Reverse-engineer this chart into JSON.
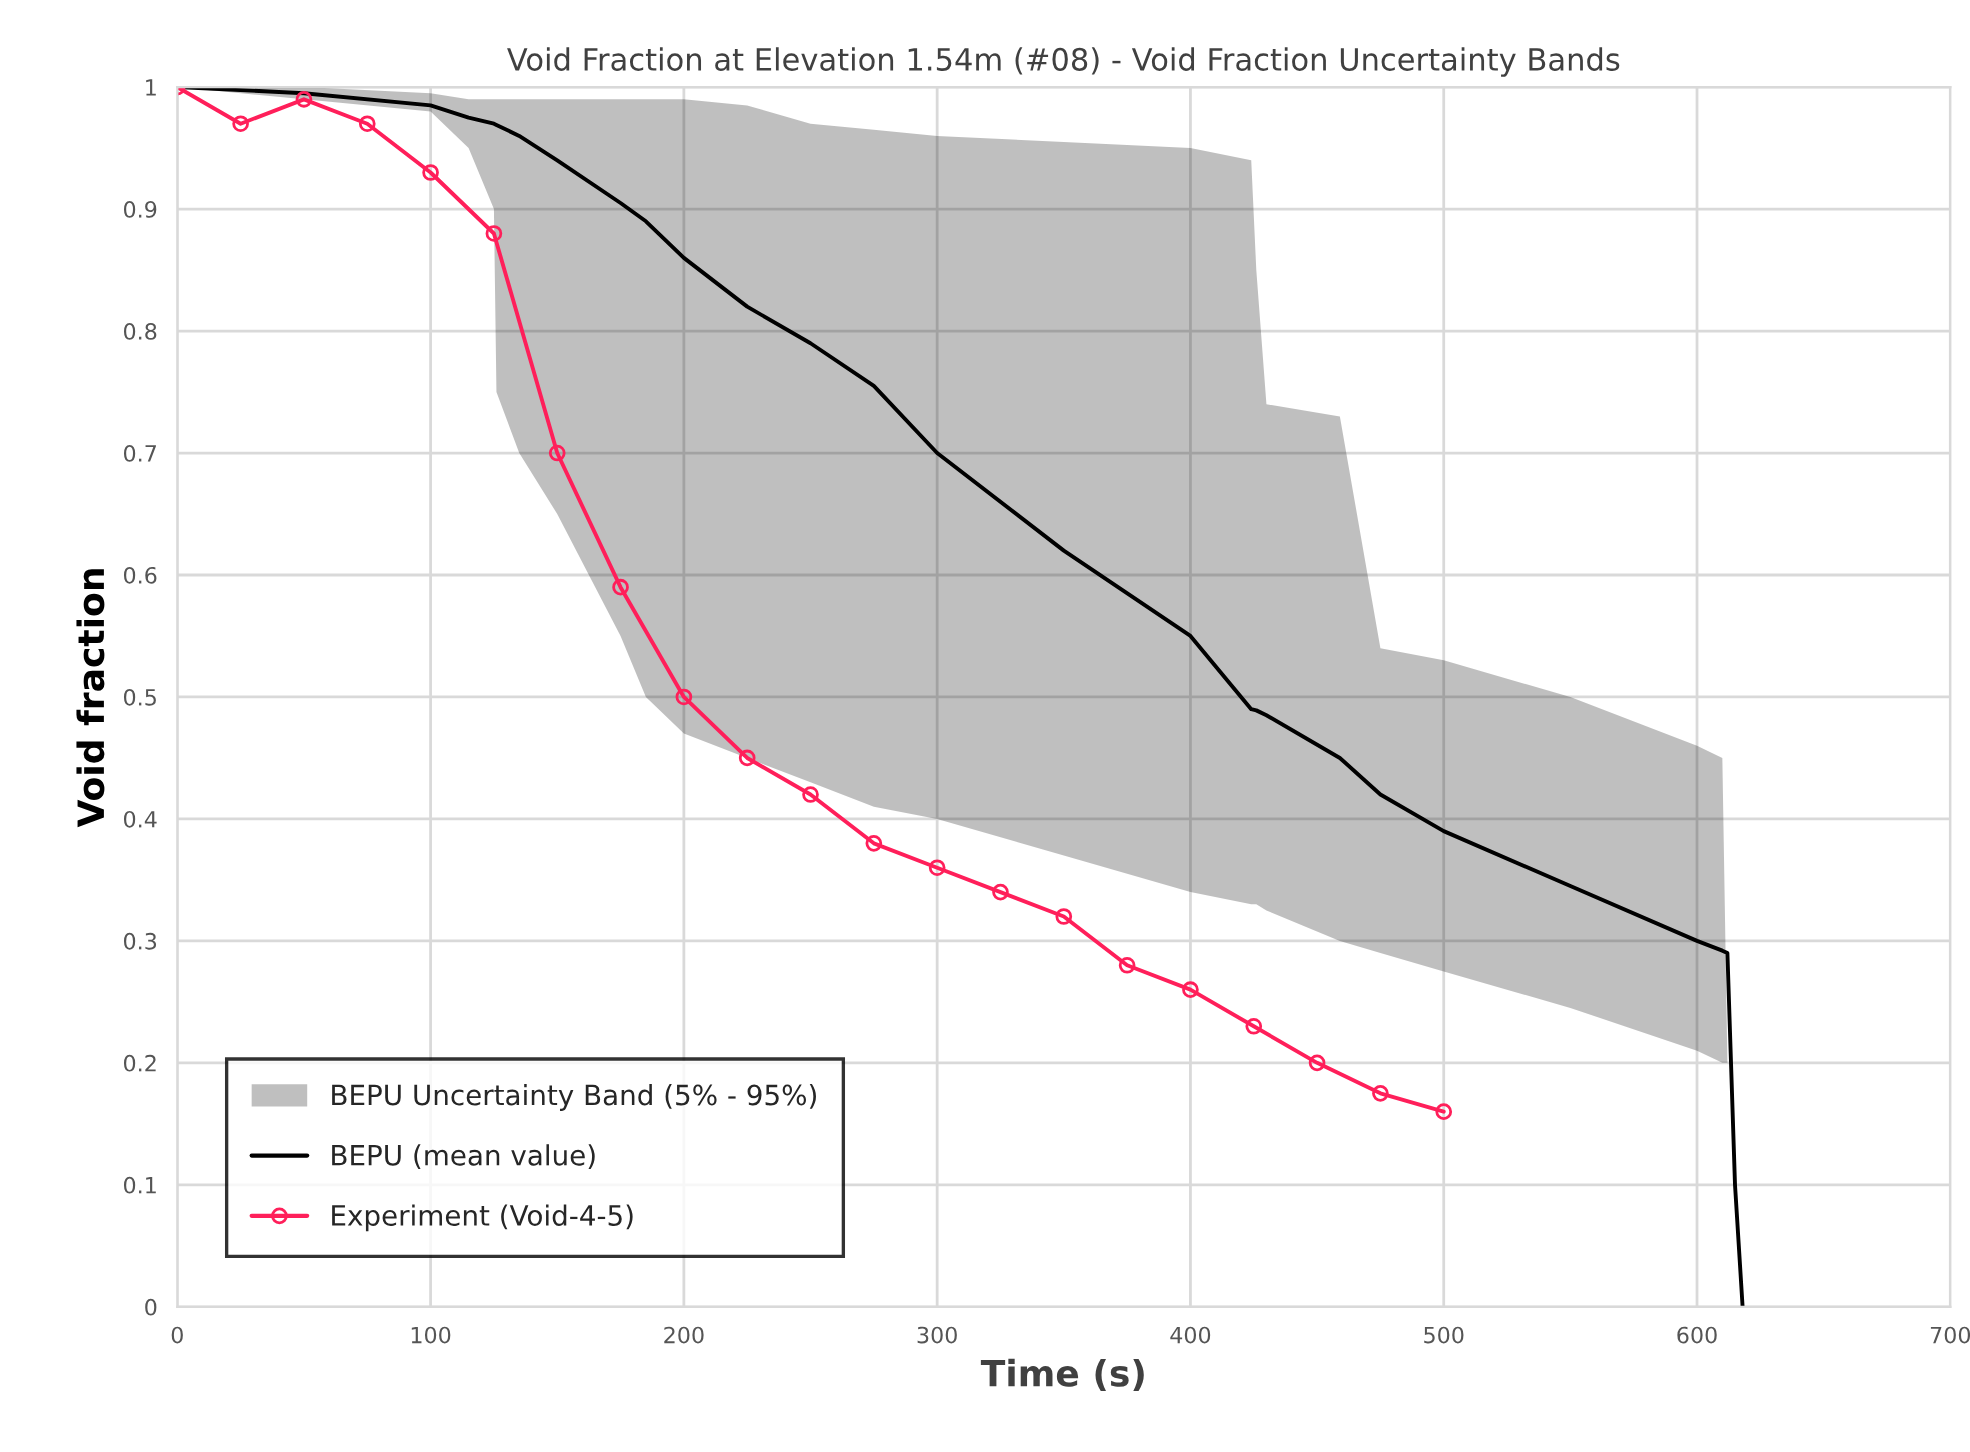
{
  "chart_data": {
    "type": "line",
    "title": "Void Fraction at Elevation 1.54m (#08) - Void Fraction Uncertainty Bands",
    "xlabel": "Time (s)",
    "ylabel": "Void fraction",
    "xlim": [
      0,
      700
    ],
    "xticks": [
      0,
      100,
      200,
      300,
      400,
      500,
      600,
      700
    ],
    "ylim": [
      0,
      1
    ],
    "yticks": [
      0,
      0.1,
      0.2,
      0.3,
      0.4,
      0.5,
      0.6,
      0.7,
      0.8,
      0.9,
      1
    ],
    "grid": true,
    "legend": "bottom left",
    "annotations": [
      "BEPU Uncertainty Band (5% - 95%)"
    ],
    "series": [
      {
        "name": "BEPU (mean value)",
        "color": "#000000",
        "marker": "none",
        "x": [
          0,
          50,
          100,
          115,
          125,
          126,
          135,
          150,
          175,
          185,
          200,
          225,
          250,
          275,
          300,
          350,
          400,
          424,
          426,
          430,
          459,
          475,
          500,
          550,
          600,
          610,
          612,
          615,
          618
        ],
        "values": [
          1,
          0.995,
          0.985,
          0.975,
          0.97,
          0.969,
          0.96,
          0.94,
          0.905,
          0.89,
          0.86,
          0.82,
          0.79,
          0.755,
          0.7,
          0.62,
          0.55,
          0.49,
          0.489,
          0.485,
          0.45,
          0.42,
          0.39,
          0.345,
          0.3,
          0.292,
          0.29,
          0.1,
          0
        ],
        "upper": [
          1,
          1,
          0.995,
          0.99,
          0.99,
          0.99,
          0.99,
          0.99,
          0.99,
          0.99,
          0.99,
          0.985,
          0.97,
          0.965,
          0.96,
          0.955,
          0.95,
          0.94,
          0.85,
          0.74,
          0.73,
          0.54,
          0.53,
          0.5,
          0.46,
          0.45,
          0.2,
          null,
          null
        ],
        "lower": [
          1,
          0.99,
          0.98,
          0.95,
          0.9,
          0.75,
          0.7,
          0.65,
          0.55,
          0.5,
          0.47,
          0.45,
          0.43,
          0.41,
          0.4,
          0.37,
          0.34,
          0.33,
          0.33,
          0.325,
          0.3,
          0.29,
          0.275,
          0.245,
          0.21,
          0.2,
          0.2,
          null,
          null
        ]
      },
      {
        "name": "Experiment (Void-4-5)",
        "color": "#ff1f5a",
        "marker": "circle",
        "x": [
          0,
          25,
          50,
          75,
          100,
          125,
          150,
          175,
          200,
          225,
          250,
          275,
          300,
          325,
          350,
          375,
          400,
          425,
          450,
          475,
          500
        ],
        "values": [
          1,
          0.97,
          0.99,
          0.97,
          0.93,
          0.88,
          0.7,
          0.59,
          0.5,
          0.45,
          0.42,
          0.38,
          0.36,
          0.34,
          0.32,
          0.28,
          0.26,
          0.23,
          0.2,
          0.175,
          0.16
        ]
      }
    ]
  }
}
